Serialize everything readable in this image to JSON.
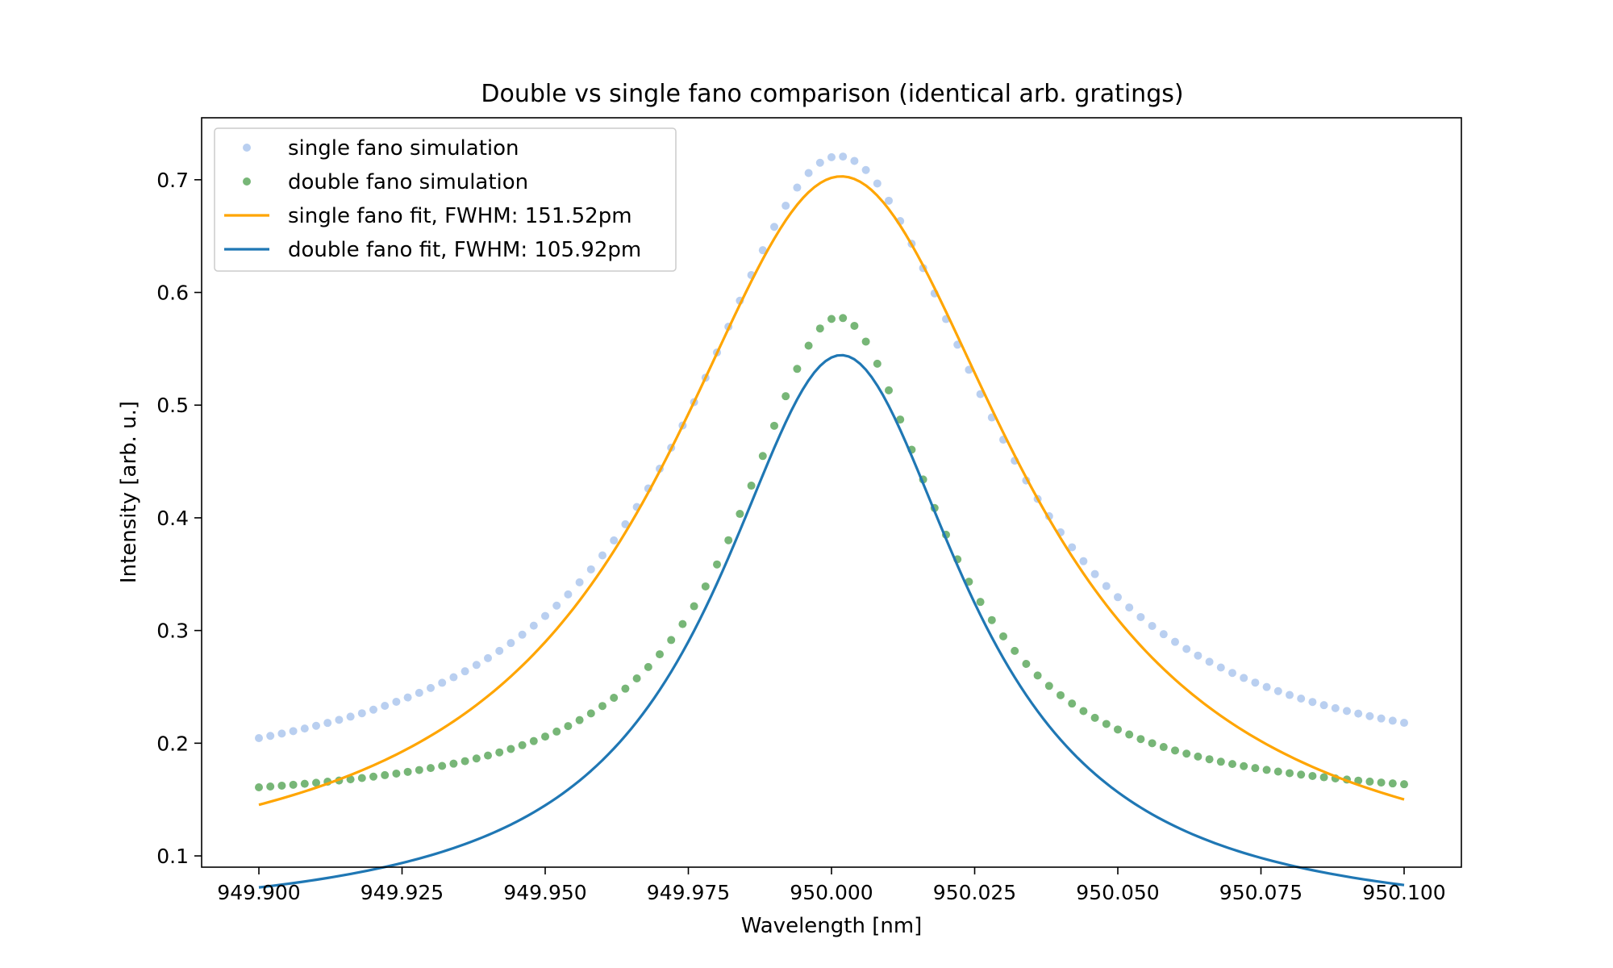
{
  "chart_data": {
    "type": "line",
    "title": "Double vs single fano comparison (identical arb. gratings)",
    "xlabel": "Wavelength [nm]",
    "ylabel": "Intensity [arb. u.]",
    "xlim": [
      949.89,
      950.11
    ],
    "ylim": [
      0.09,
      0.755
    ],
    "x_ticks": [
      949.9,
      949.925,
      949.95,
      949.975,
      950.0,
      950.025,
      950.05,
      950.075,
      950.1
    ],
    "x_tick_labels": [
      "949.900",
      "949.925",
      "949.950",
      "949.975",
      "950.000",
      "950.025",
      "950.050",
      "950.075",
      "950.100"
    ],
    "y_ticks": [
      0.1,
      0.2,
      0.3,
      0.4,
      0.5,
      0.6,
      0.7
    ],
    "y_tick_labels": [
      "0.1",
      "0.2",
      "0.3",
      "0.4",
      "0.5",
      "0.6",
      "0.7"
    ],
    "grid": false,
    "legend_position": "top-left",
    "series": [
      {
        "name": "single fano simulation",
        "kind": "scatter",
        "color": "#a1bfeb",
        "x_start": 949.9,
        "x_end": 950.1,
        "n_points": 101,
        "model": {
          "baseline": 0.16,
          "amplitude": 0.5609,
          "center": 950.0012,
          "gamma": 0.0635,
          "skew": 0.0018
        }
      },
      {
        "name": "double fano simulation",
        "kind": "scatter",
        "color": "#4a9e4a",
        "x_start": 949.9,
        "x_end": 950.1,
        "n_points": 101,
        "model": {
          "baseline": 0.1439,
          "amplitude": 0.434,
          "center": 950.0012,
          "gamma": 0.042,
          "skew": 0.0002
        }
      },
      {
        "name": "single fano fit, FWHM: 151.52pm",
        "kind": "line",
        "color": "#ffa500",
        "x_start": 949.9,
        "x_end": 950.1,
        "n_points": 201,
        "model": {
          "baseline": 0.068,
          "amplitude": 0.635,
          "center": 950.0017,
          "gamma": 0.07576,
          "skew": 0.0
        }
      },
      {
        "name": "double fano fit, FWHM: 105.92pm",
        "kind": "line",
        "color": "#1f77b4",
        "x_start": 949.9,
        "x_end": 950.1,
        "n_points": 201,
        "model": {
          "baseline": 0.04,
          "amplitude": 0.5044,
          "center": 950.0017,
          "gamma": 0.05296,
          "skew": 0.0
        }
      }
    ]
  }
}
